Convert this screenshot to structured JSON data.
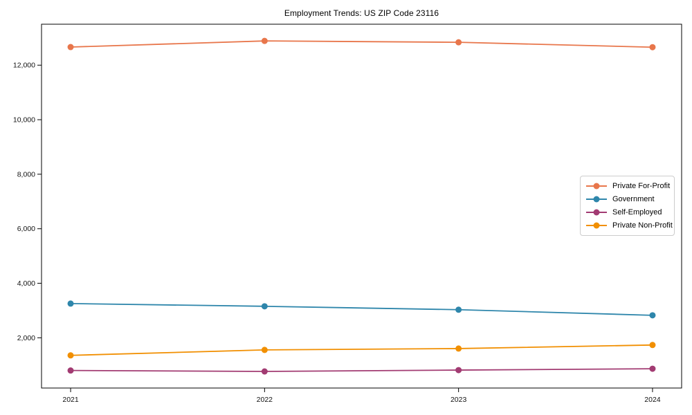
{
  "chart_data": {
    "type": "line",
    "title": "Employment Trends: US ZIP Code 23116",
    "x": [
      2021,
      2022,
      2023,
      2024
    ],
    "x_tick_labels": [
      "2021",
      "2022",
      "2023",
      "2024"
    ],
    "y_ticks": [
      2000,
      4000,
      6000,
      8000,
      10000,
      12000
    ],
    "y_tick_labels": [
      "2,000",
      "4,000",
      "6,000",
      "8,000",
      "10,000",
      "12,000"
    ],
    "xlim": [
      2020.85,
      2024.15
    ],
    "ylim": [
      157,
      13503
    ],
    "grid": false,
    "marker": "circle",
    "legend_position": "center right",
    "series": [
      {
        "name": "Private For-Profit",
        "color": "#E8764B",
        "values": [
          12665,
          12890,
          12840,
          12660
        ]
      },
      {
        "name": "Government",
        "color": "#2E86AB",
        "values": [
          3255,
          3155,
          3030,
          2825
        ]
      },
      {
        "name": "Self-Employed",
        "color": "#A23B72",
        "values": [
          800,
          765,
          815,
          865
        ]
      },
      {
        "name": "Private Non-Profit",
        "color": "#F18F01",
        "values": [
          1355,
          1555,
          1605,
          1735
        ]
      }
    ],
    "axis_color": "#000000",
    "legend_border_color": "#cccccc"
  }
}
